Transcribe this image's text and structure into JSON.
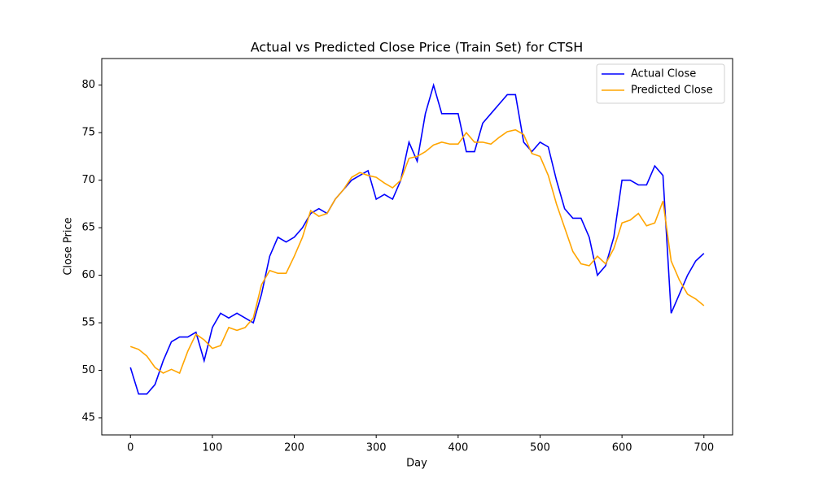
{
  "chart_data": {
    "type": "line",
    "title": "Actual vs Predicted Close Price (Train Set) for CTSH",
    "xlabel": "Day",
    "ylabel": "Close Price",
    "x": [
      0,
      10,
      20,
      30,
      40,
      50,
      60,
      70,
      80,
      90,
      100,
      110,
      120,
      130,
      140,
      150,
      160,
      170,
      180,
      190,
      200,
      210,
      220,
      230,
      240,
      250,
      260,
      270,
      280,
      290,
      300,
      310,
      320,
      330,
      340,
      350,
      360,
      370,
      380,
      390,
      400,
      410,
      420,
      430,
      440,
      450,
      460,
      470,
      480,
      490,
      500,
      510,
      520,
      530,
      540,
      550,
      560,
      570,
      580,
      590,
      600,
      610,
      620,
      630,
      640,
      650,
      660,
      670,
      680,
      690,
      700
    ],
    "series": [
      {
        "name": "Actual Close",
        "color": "#0000ff",
        "values": [
          50.3,
          47.5,
          47.5,
          48.5,
          51,
          53,
          53.5,
          53.5,
          54,
          51,
          54.5,
          56,
          55.5,
          56,
          55.5,
          55,
          58,
          62,
          64,
          63.5,
          64,
          65,
          66.5,
          67,
          66.5,
          68,
          69,
          70,
          70.5,
          71,
          68,
          68.5,
          68,
          70,
          74,
          72,
          77,
          80,
          77,
          77,
          77,
          73,
          73,
          76,
          77,
          78,
          79,
          79,
          74,
          73,
          74,
          73.5,
          70,
          67,
          66,
          66,
          64,
          60,
          61,
          64,
          70,
          70,
          69.5,
          69.5,
          71.5,
          70.5,
          56,
          58,
          60,
          61.5,
          62.3
        ]
      },
      {
        "name": "Predicted Close",
        "color": "#ffa500",
        "values": [
          52.5,
          52.2,
          51.5,
          50.3,
          49.7,
          50.1,
          49.7,
          52,
          53.8,
          53.2,
          52.3,
          52.6,
          54.5,
          54.2,
          54.5,
          55.5,
          59,
          60.5,
          60.2,
          60.2,
          62,
          64,
          66.8,
          66.2,
          66.5,
          68,
          69,
          70.3,
          70.8,
          70.5,
          70.3,
          69.7,
          69.2,
          70,
          72.3,
          72.5,
          73,
          73.7,
          74,
          73.8,
          73.8,
          75,
          74,
          74,
          73.8,
          74.5,
          75.1,
          75.3,
          74.8,
          72.8,
          72.5,
          70.5,
          67.5,
          65,
          62.5,
          61.2,
          61,
          62,
          61.2,
          62.8,
          65.5,
          65.8,
          66.5,
          65.2,
          65.5,
          67.8,
          61.5,
          59.5,
          58,
          57.5,
          56.8
        ]
      }
    ],
    "xlim": [
      -35,
      735
    ],
    "ylim": [
      43.2,
      82.8
    ],
    "xticks": [
      0,
      100,
      200,
      300,
      400,
      500,
      600,
      700
    ],
    "yticks": [
      45,
      50,
      55,
      60,
      65,
      70,
      75,
      80
    ],
    "legend": "upper right",
    "grid": false
  }
}
